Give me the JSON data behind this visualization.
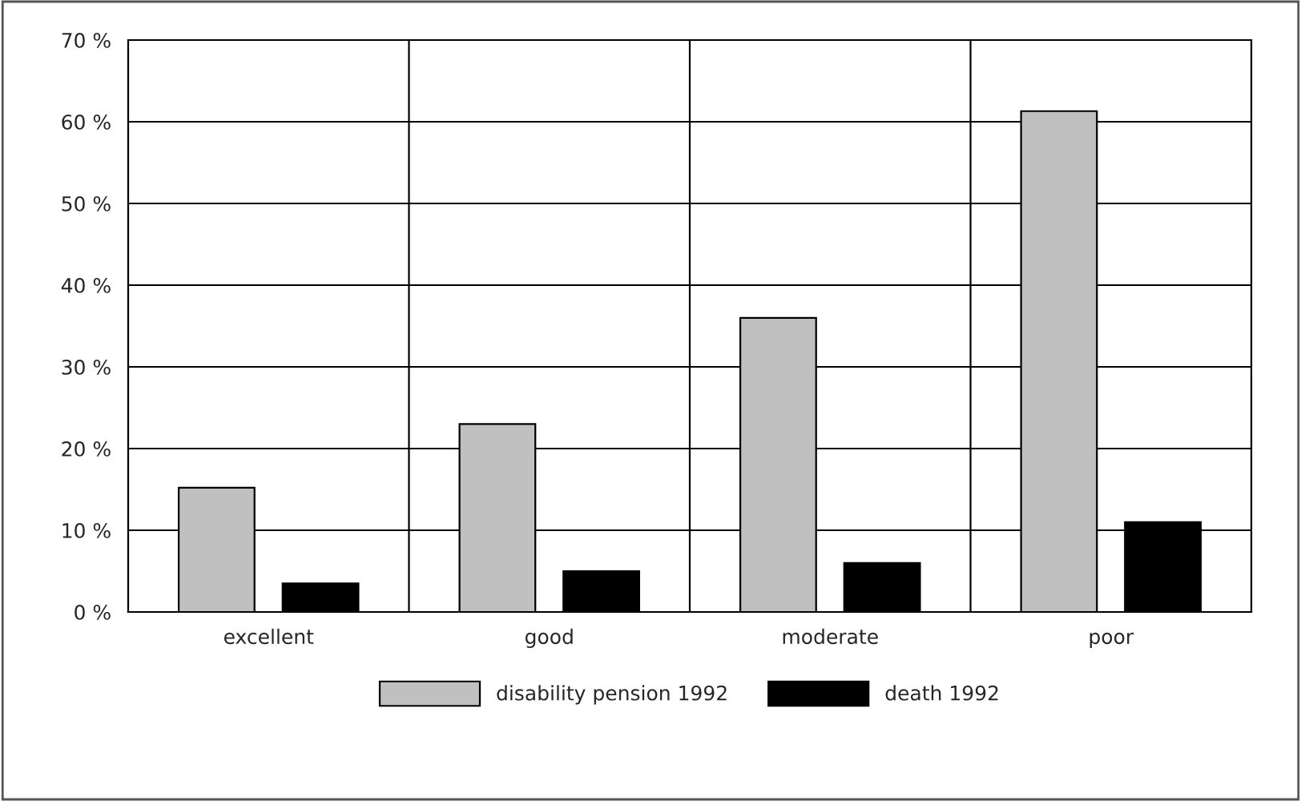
{
  "chart_data": {
    "type": "bar",
    "categories": [
      "excellent",
      "good",
      "moderate",
      "poor"
    ],
    "series": [
      {
        "name": "disability pension 1992",
        "color": "#c0c0c0",
        "values": [
          15.2,
          23,
          36,
          61.3
        ]
      },
      {
        "name": "death 1992",
        "color": "#000000",
        "values": [
          3.5,
          5,
          6,
          11
        ]
      }
    ],
    "ylim": [
      0,
      70
    ],
    "yticks": [
      {
        "value": 0,
        "label": "0 %"
      },
      {
        "value": 10,
        "label": "10 %"
      },
      {
        "value": 20,
        "label": "20 %"
      },
      {
        "value": 30,
        "label": "30 %"
      },
      {
        "value": 40,
        "label": "40 %"
      },
      {
        "value": 50,
        "label": "50 %"
      },
      {
        "value": 60,
        "label": "60 %"
      },
      {
        "value": 70,
        "label": "70 %"
      }
    ],
    "grid": true,
    "legend": "bottom"
  }
}
